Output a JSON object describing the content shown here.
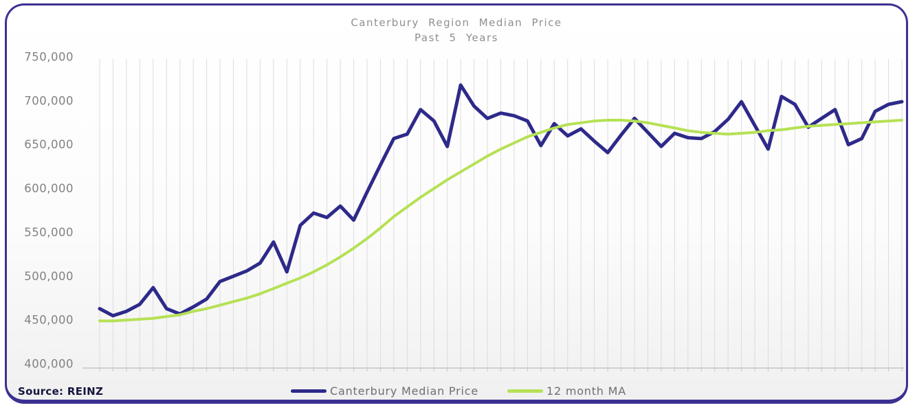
{
  "card": {
    "title": "Canterbury Region Median Price",
    "subtitle": "Past 5 Years",
    "source_label": "Source: REINZ"
  },
  "chart_data": {
    "type": "line",
    "title": "Canterbury Region Median Price",
    "subtitle": "Past 5 Years",
    "xlabel": "",
    "ylabel": "",
    "x_axis_note": "61 monthly points over 5 years, no visible tick labels",
    "ylim": [
      400000,
      750000
    ],
    "y_ticks": [
      {
        "value": 750000,
        "label": "750,000"
      },
      {
        "value": 700000,
        "label": "700,000"
      },
      {
        "value": 650000,
        "label": "650,000"
      },
      {
        "value": 600000,
        "label": "600,000"
      },
      {
        "value": 550000,
        "label": "550,000"
      },
      {
        "value": 500000,
        "label": "500,000"
      },
      {
        "value": 450000,
        "label": "450,000"
      },
      {
        "value": 400000,
        "label": "400,000"
      }
    ],
    "grid": {
      "vertical": true,
      "horizontal": false
    },
    "legend_position": "bottom-center",
    "source": "Source: REINZ",
    "series": [
      {
        "name": "Canterbury Median Price",
        "color": "#2e2a8a",
        "values": [
          463000,
          455000,
          460000,
          468000,
          487000,
          463000,
          457000,
          465000,
          474000,
          494000,
          500000,
          506000,
          515000,
          539000,
          505000,
          558000,
          572000,
          567000,
          580000,
          564000,
          596000,
          627000,
          657000,
          662000,
          690000,
          677000,
          648000,
          718000,
          694000,
          680000,
          686000,
          683000,
          677000,
          649000,
          674000,
          660000,
          668000,
          654000,
          641000,
          661000,
          680000,
          664000,
          648000,
          663000,
          658000,
          657000,
          665000,
          679000,
          699000,
          672000,
          645000,
          705000,
          696000,
          670000,
          680000,
          690000,
          650000,
          657000,
          688000,
          696000,
          699000
        ]
      },
      {
        "name": "12 month MA",
        "color": "#b5e155",
        "values": [
          449000,
          449000,
          450000,
          451000,
          452000,
          454000,
          456000,
          460000,
          463000,
          467000,
          471000,
          475000,
          480000,
          486000,
          492000,
          498000,
          505000,
          513000,
          522000,
          532000,
          543000,
          555000,
          568000,
          579000,
          590000,
          600000,
          610000,
          619000,
          628000,
          637000,
          645000,
          652000,
          659000,
          664000,
          669000,
          673000,
          675000,
          677000,
          678000,
          678000,
          677000,
          675000,
          672000,
          669000,
          666000,
          664000,
          663000,
          662000,
          663000,
          664000,
          666000,
          667000,
          669000,
          671000,
          672000,
          673000,
          674000,
          675000,
          676000,
          677000,
          678000
        ]
      }
    ]
  },
  "colors": {
    "card_border": "#3b3192",
    "navy_line": "#2e2a8a",
    "green_line": "#b5e155",
    "title_text": "#8f8f8f",
    "axis_text": "#828282",
    "legend_text": "#6f6f6f",
    "source_text": "#15153f",
    "gridline": "#dcdcdc",
    "axis_line": "#c6c6c6"
  }
}
